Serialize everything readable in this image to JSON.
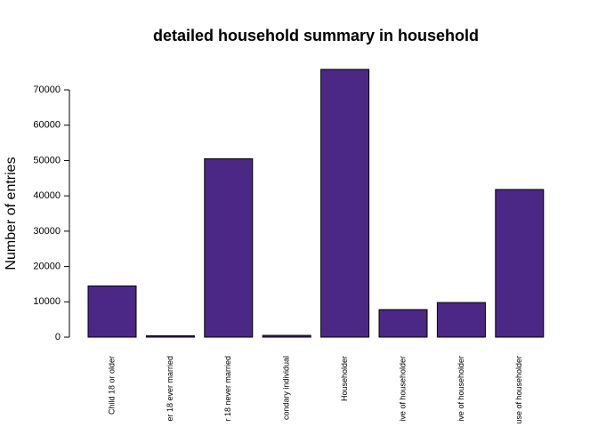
{
  "chart_data": {
    "type": "bar",
    "title": "detailed household summary in household",
    "y_label": "Number of entries",
    "categories": [
      "Child 18 or older",
      "er 18 ever married",
      "r 18 never married",
      "condary individual",
      "Householder",
      "ive of householder",
      "ive of householder",
      "use of householder"
    ],
    "values": [
      14500,
      400,
      50500,
      500,
      75800,
      7800,
      9800,
      41800
    ],
    "color": "#4b2885",
    "ylim": [
      0,
      75800
    ],
    "yticks": [
      0,
      10000,
      20000,
      30000,
      40000,
      50000,
      60000,
      70000
    ]
  }
}
